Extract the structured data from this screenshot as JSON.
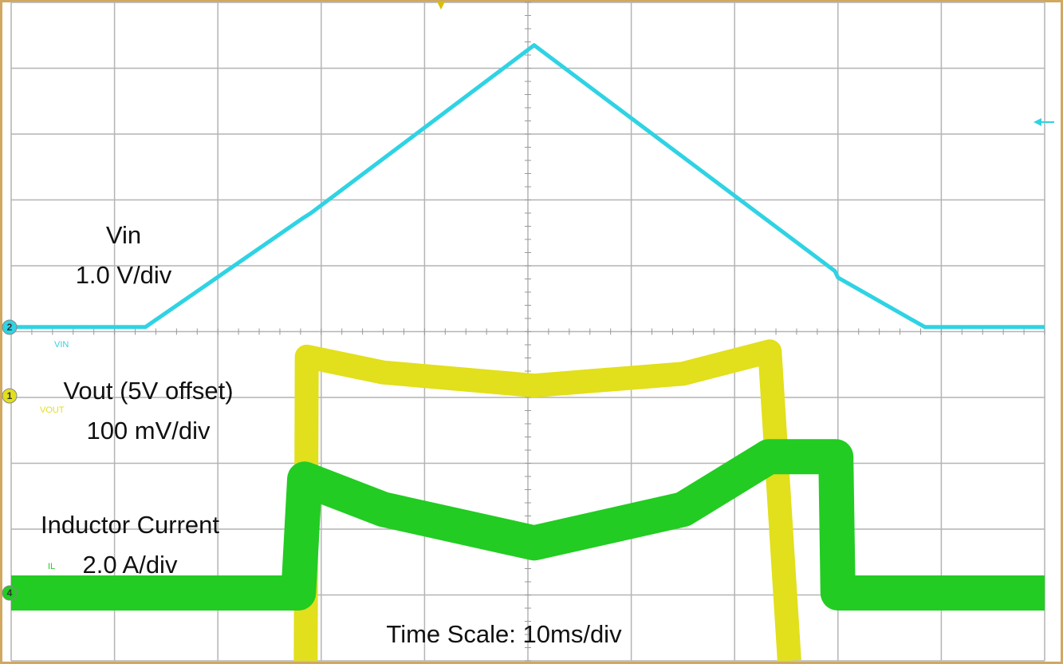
{
  "chart_data": {
    "type": "line",
    "x_label": "Time Scale: 10ms/div",
    "xlim": [
      0,
      10
    ],
    "ylim": [
      0,
      10
    ],
    "grid": true,
    "series": [
      {
        "name": "Vin",
        "scale": "1.0 V/div",
        "channel": "2",
        "tag": "VIN",
        "color": "#2fd3e3",
        "x": [
          0,
          1.3,
          2.82,
          2.9,
          5.06,
          7.97,
          8.0,
          8.84,
          10
        ],
        "values": [
          5.07,
          5.07,
          6.72,
          6.8,
          9.35,
          5.92,
          5.82,
          5.07,
          5.07
        ]
      },
      {
        "name": "Vout (5V offset)",
        "scale": "100 mV/div",
        "channel": "1",
        "tag": "VOUT",
        "color": "#e2df1c",
        "x": [
          2.85,
          2.86,
          3.6,
          5.06,
          6.5,
          7.34,
          7.53
        ],
        "values": [
          0,
          4.62,
          4.38,
          4.18,
          4.36,
          4.7,
          0
        ]
      },
      {
        "name": "Inductor Current",
        "scale": "2.0 A/div",
        "channel": "4",
        "tag": "IL",
        "color": "#22cc22",
        "x": [
          0,
          2.78,
          2.84,
          3.6,
          5.06,
          6.5,
          7.3,
          7.33,
          7.98,
          8.0,
          10
        ],
        "values": [
          1.03,
          1.03,
          2.76,
          2.3,
          1.79,
          2.3,
          3.07,
          3.1,
          3.1,
          1.03,
          1.03
        ]
      }
    ]
  }
}
